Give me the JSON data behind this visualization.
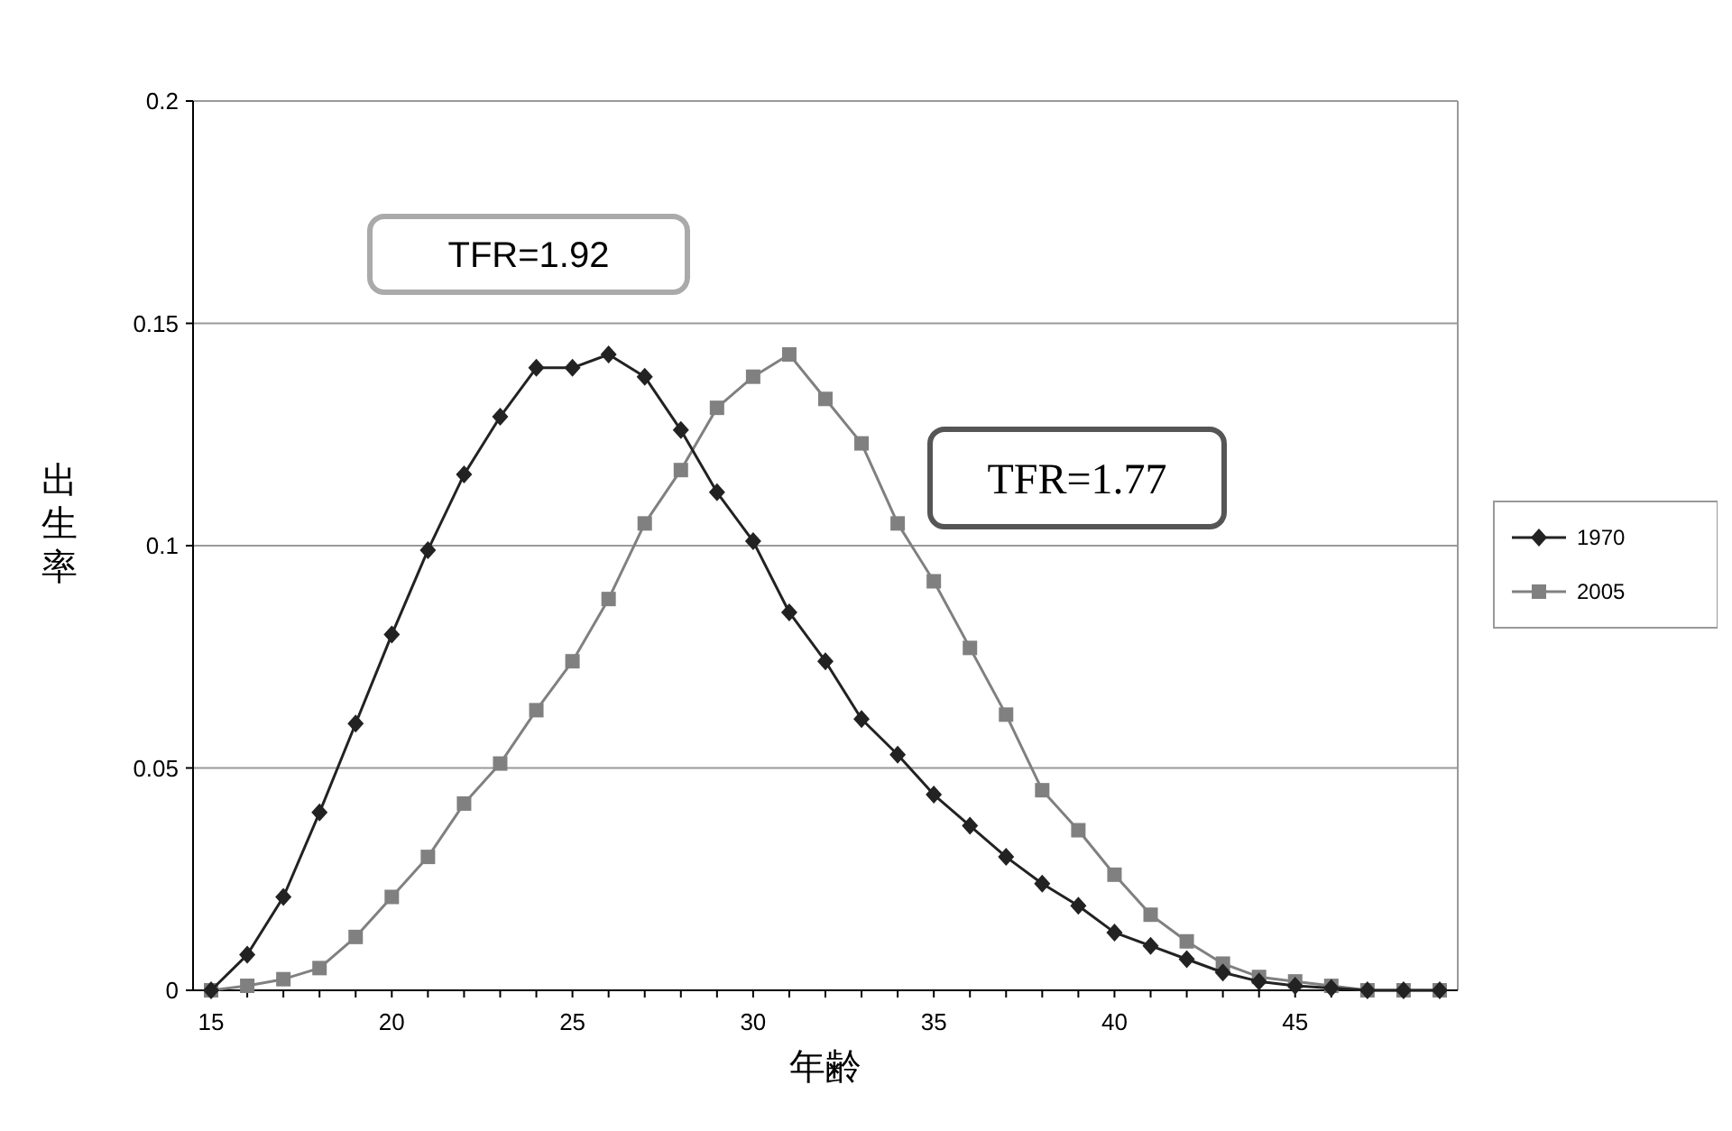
{
  "chart_data": {
    "type": "line",
    "xlabel": "年齢",
    "ylabel": "出生率",
    "x": [
      15,
      16,
      17,
      18,
      19,
      20,
      21,
      22,
      23,
      24,
      25,
      26,
      27,
      28,
      29,
      30,
      31,
      32,
      33,
      34,
      35,
      36,
      37,
      38,
      39,
      40,
      41,
      42,
      43,
      44,
      45,
      46,
      47,
      48,
      49
    ],
    "xlim": [
      14.5,
      49.5
    ],
    "xticks": [
      15,
      20,
      25,
      30,
      35,
      40,
      45
    ],
    "ylim": [
      0,
      0.2
    ],
    "yticks": [
      0,
      0.05,
      0.1,
      0.15,
      0.2
    ],
    "grid": "y",
    "legend": "right",
    "series": [
      {
        "name": "1970",
        "color": "#222222",
        "marker": "diamond",
        "values": [
          0,
          0.008,
          0.021,
          0.04,
          0.06,
          0.08,
          0.099,
          0.116,
          0.129,
          0.14,
          0.14,
          0.143,
          0.138,
          0.126,
          0.112,
          0.101,
          0.085,
          0.074,
          0.061,
          0.053,
          0.044,
          0.037,
          0.03,
          0.024,
          0.019,
          0.013,
          0.01,
          0.007,
          0.004,
          0.002,
          0.001,
          0.0005,
          0,
          0,
          0
        ]
      },
      {
        "name": "2005",
        "color": "#808080",
        "marker": "square",
        "values": [
          0,
          0.001,
          0.0025,
          0.005,
          0.012,
          0.021,
          0.03,
          0.042,
          0.051,
          0.063,
          0.074,
          0.088,
          0.105,
          0.117,
          0.131,
          0.138,
          0.143,
          0.133,
          0.123,
          0.105,
          0.092,
          0.077,
          0.062,
          0.045,
          0.036,
          0.026,
          0.017,
          0.011,
          0.006,
          0.003,
          0.002,
          0.001,
          0,
          0,
          0
        ]
      }
    ],
    "annotations": [
      "TFR=1.92",
      "TFR=1.77"
    ]
  }
}
